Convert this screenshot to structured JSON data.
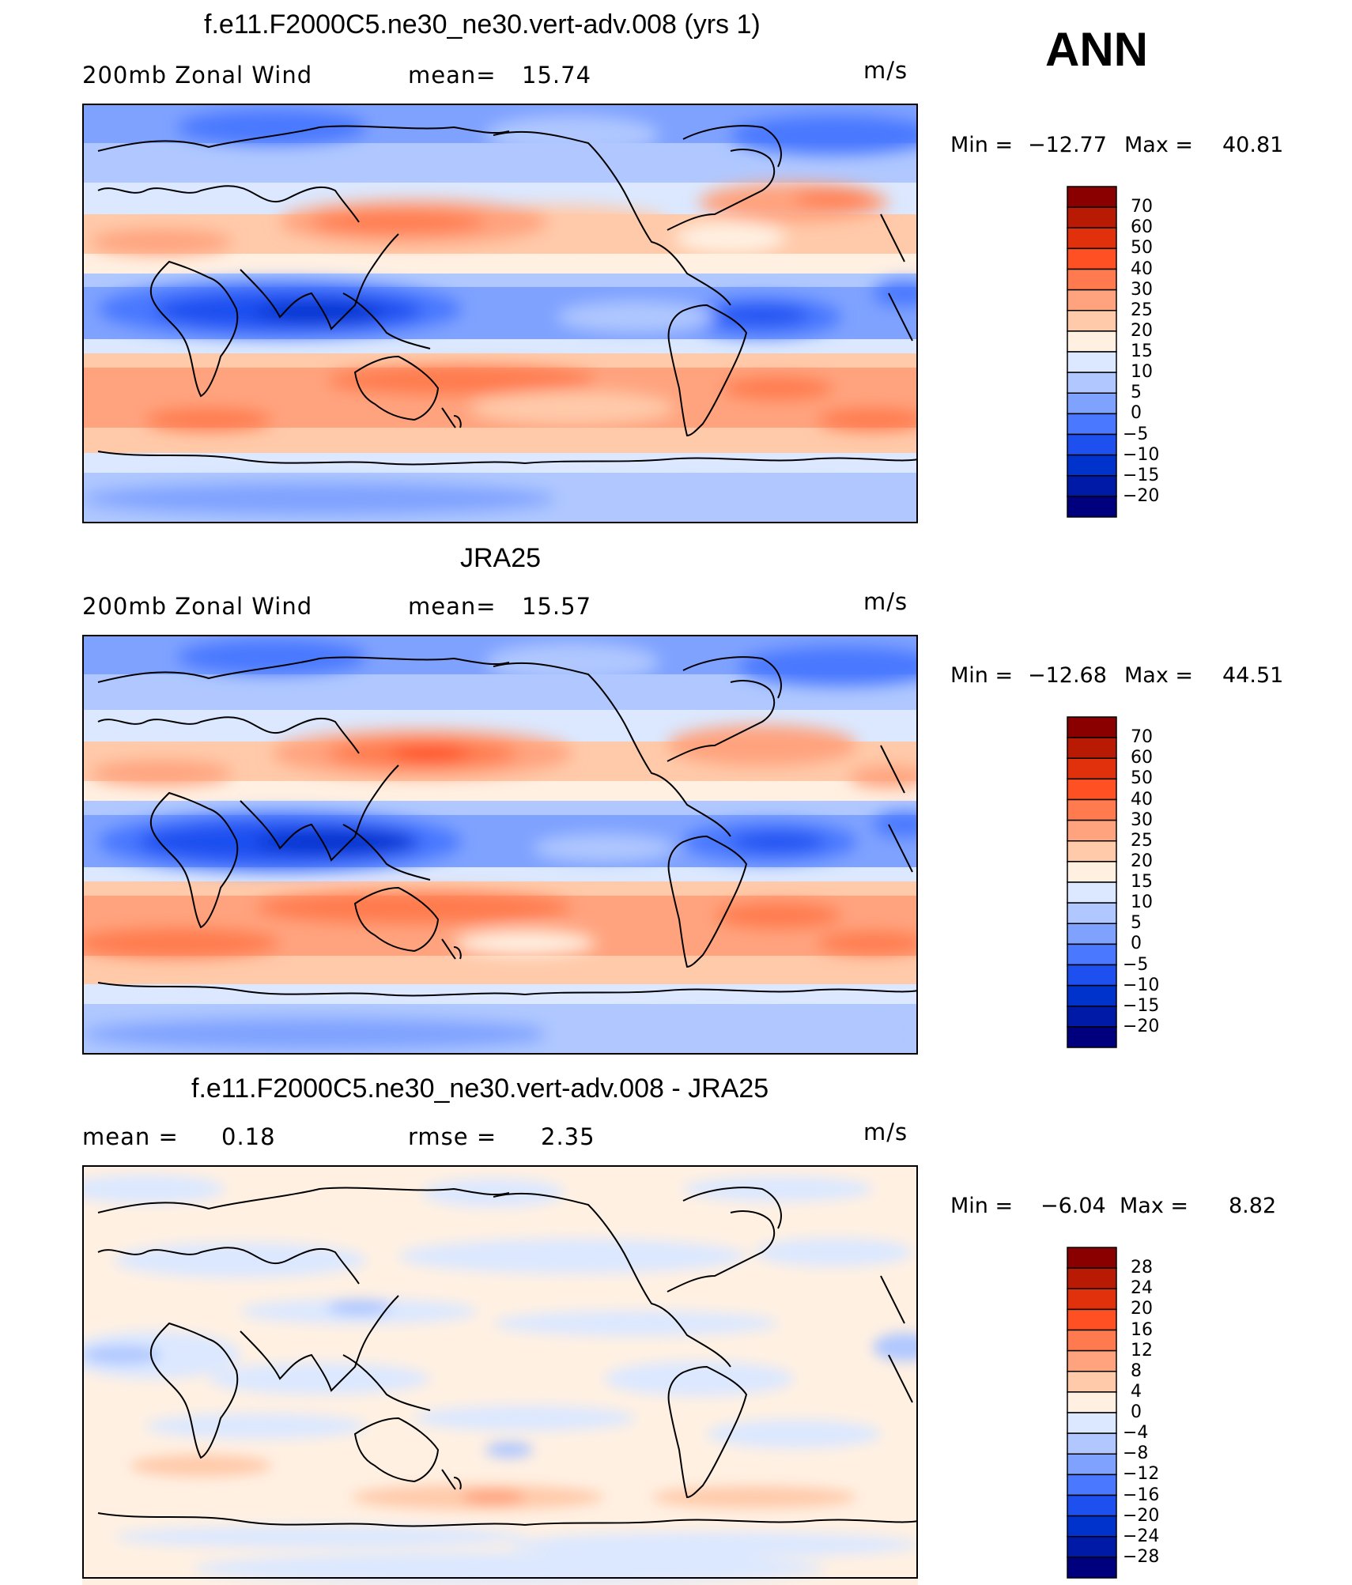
{
  "season": "ANN",
  "panels": [
    {
      "title": "f.e11.F2000C5.ne30_ne30.vert-adv.008 (yrs 1)",
      "left_text": "200mb  Zonal Wind",
      "middle_label": "mean=",
      "middle_value": "15.74",
      "units": "m/s",
      "min_label": "Min  =",
      "min_value": "−12.77",
      "max_label": "Max  =",
      "max_value": "40.81",
      "colorbar_levels": [
        "70",
        "60",
        "50",
        "40",
        "30",
        "25",
        "20",
        "15",
        "10",
        "5",
        "0",
        "−5",
        "−10",
        "−15",
        "−20"
      ]
    },
    {
      "title": "JRA25",
      "left_text": "200mb  Zonal Wind",
      "middle_label": "mean=",
      "middle_value": "15.57",
      "units": "m/s",
      "min_label": "Min  =",
      "min_value": "−12.68",
      "max_label": "Max  =",
      "max_value": "44.51",
      "colorbar_levels": [
        "70",
        "60",
        "50",
        "40",
        "30",
        "25",
        "20",
        "15",
        "10",
        "5",
        "0",
        "−5",
        "−10",
        "−15",
        "−20"
      ]
    },
    {
      "title": "f.e11.F2000C5.ne30_ne30.vert-adv.008 - JRA25",
      "left_label": "mean =",
      "left_value": "0.18",
      "middle_label": "rmse =",
      "middle_value": "2.35",
      "units": "m/s",
      "min_label": "Min  =",
      "min_value": "−6.04",
      "max_label": "Max  =",
      "max_value": "8.82",
      "colorbar_levels": [
        "28",
        "24",
        "20",
        "16",
        "12",
        "8",
        "4",
        "0",
        "−4",
        "−8",
        "−12",
        "−16",
        "−20",
        "−24",
        "−28"
      ]
    }
  ],
  "colors": {
    "palette": [
      "#00007f",
      "#001aa8",
      "#0033cc",
      "#1e50f0",
      "#4a78ff",
      "#7fa2ff",
      "#b0c8ff",
      "#dbe8ff",
      "#fff0e2",
      "#ffcaaa",
      "#ffa37e",
      "#ff7a4e",
      "#ff5024",
      "#e0300c",
      "#b81a04",
      "#8a0000"
    ],
    "coastline": "#000000",
    "frame": "#000000"
  }
}
